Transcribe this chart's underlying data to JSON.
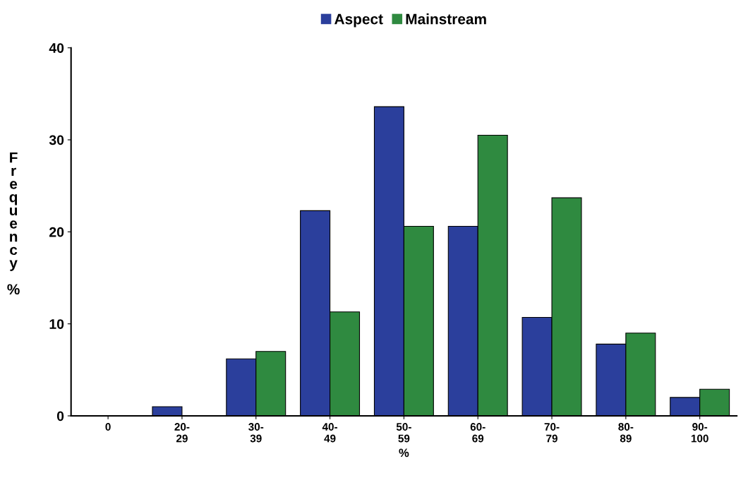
{
  "chart_data": {
    "type": "bar",
    "xlabel": "%",
    "ylabel": "Frequency %",
    "categories": [
      "0",
      "20-\n29",
      "30-\n39",
      "40-\n49",
      "50-\n59",
      "60-\n69",
      "70-\n79",
      "80-\n89",
      "90-\n100"
    ],
    "series": [
      {
        "name": "Aspect",
        "color": "#2b3f9c",
        "values": [
          0,
          1,
          6.2,
          22.3,
          33.6,
          20.6,
          10.7,
          7.8,
          2
        ]
      },
      {
        "name": "Mainstream",
        "color": "#2f8a40",
        "values": [
          0,
          0,
          7,
          11.3,
          20.6,
          30.5,
          23.7,
          9,
          2.9
        ]
      }
    ],
    "ylim": [
      0,
      40
    ],
    "yticks": [
      0,
      10,
      20,
      30,
      40
    ],
    "grid": false,
    "legend": "top"
  }
}
